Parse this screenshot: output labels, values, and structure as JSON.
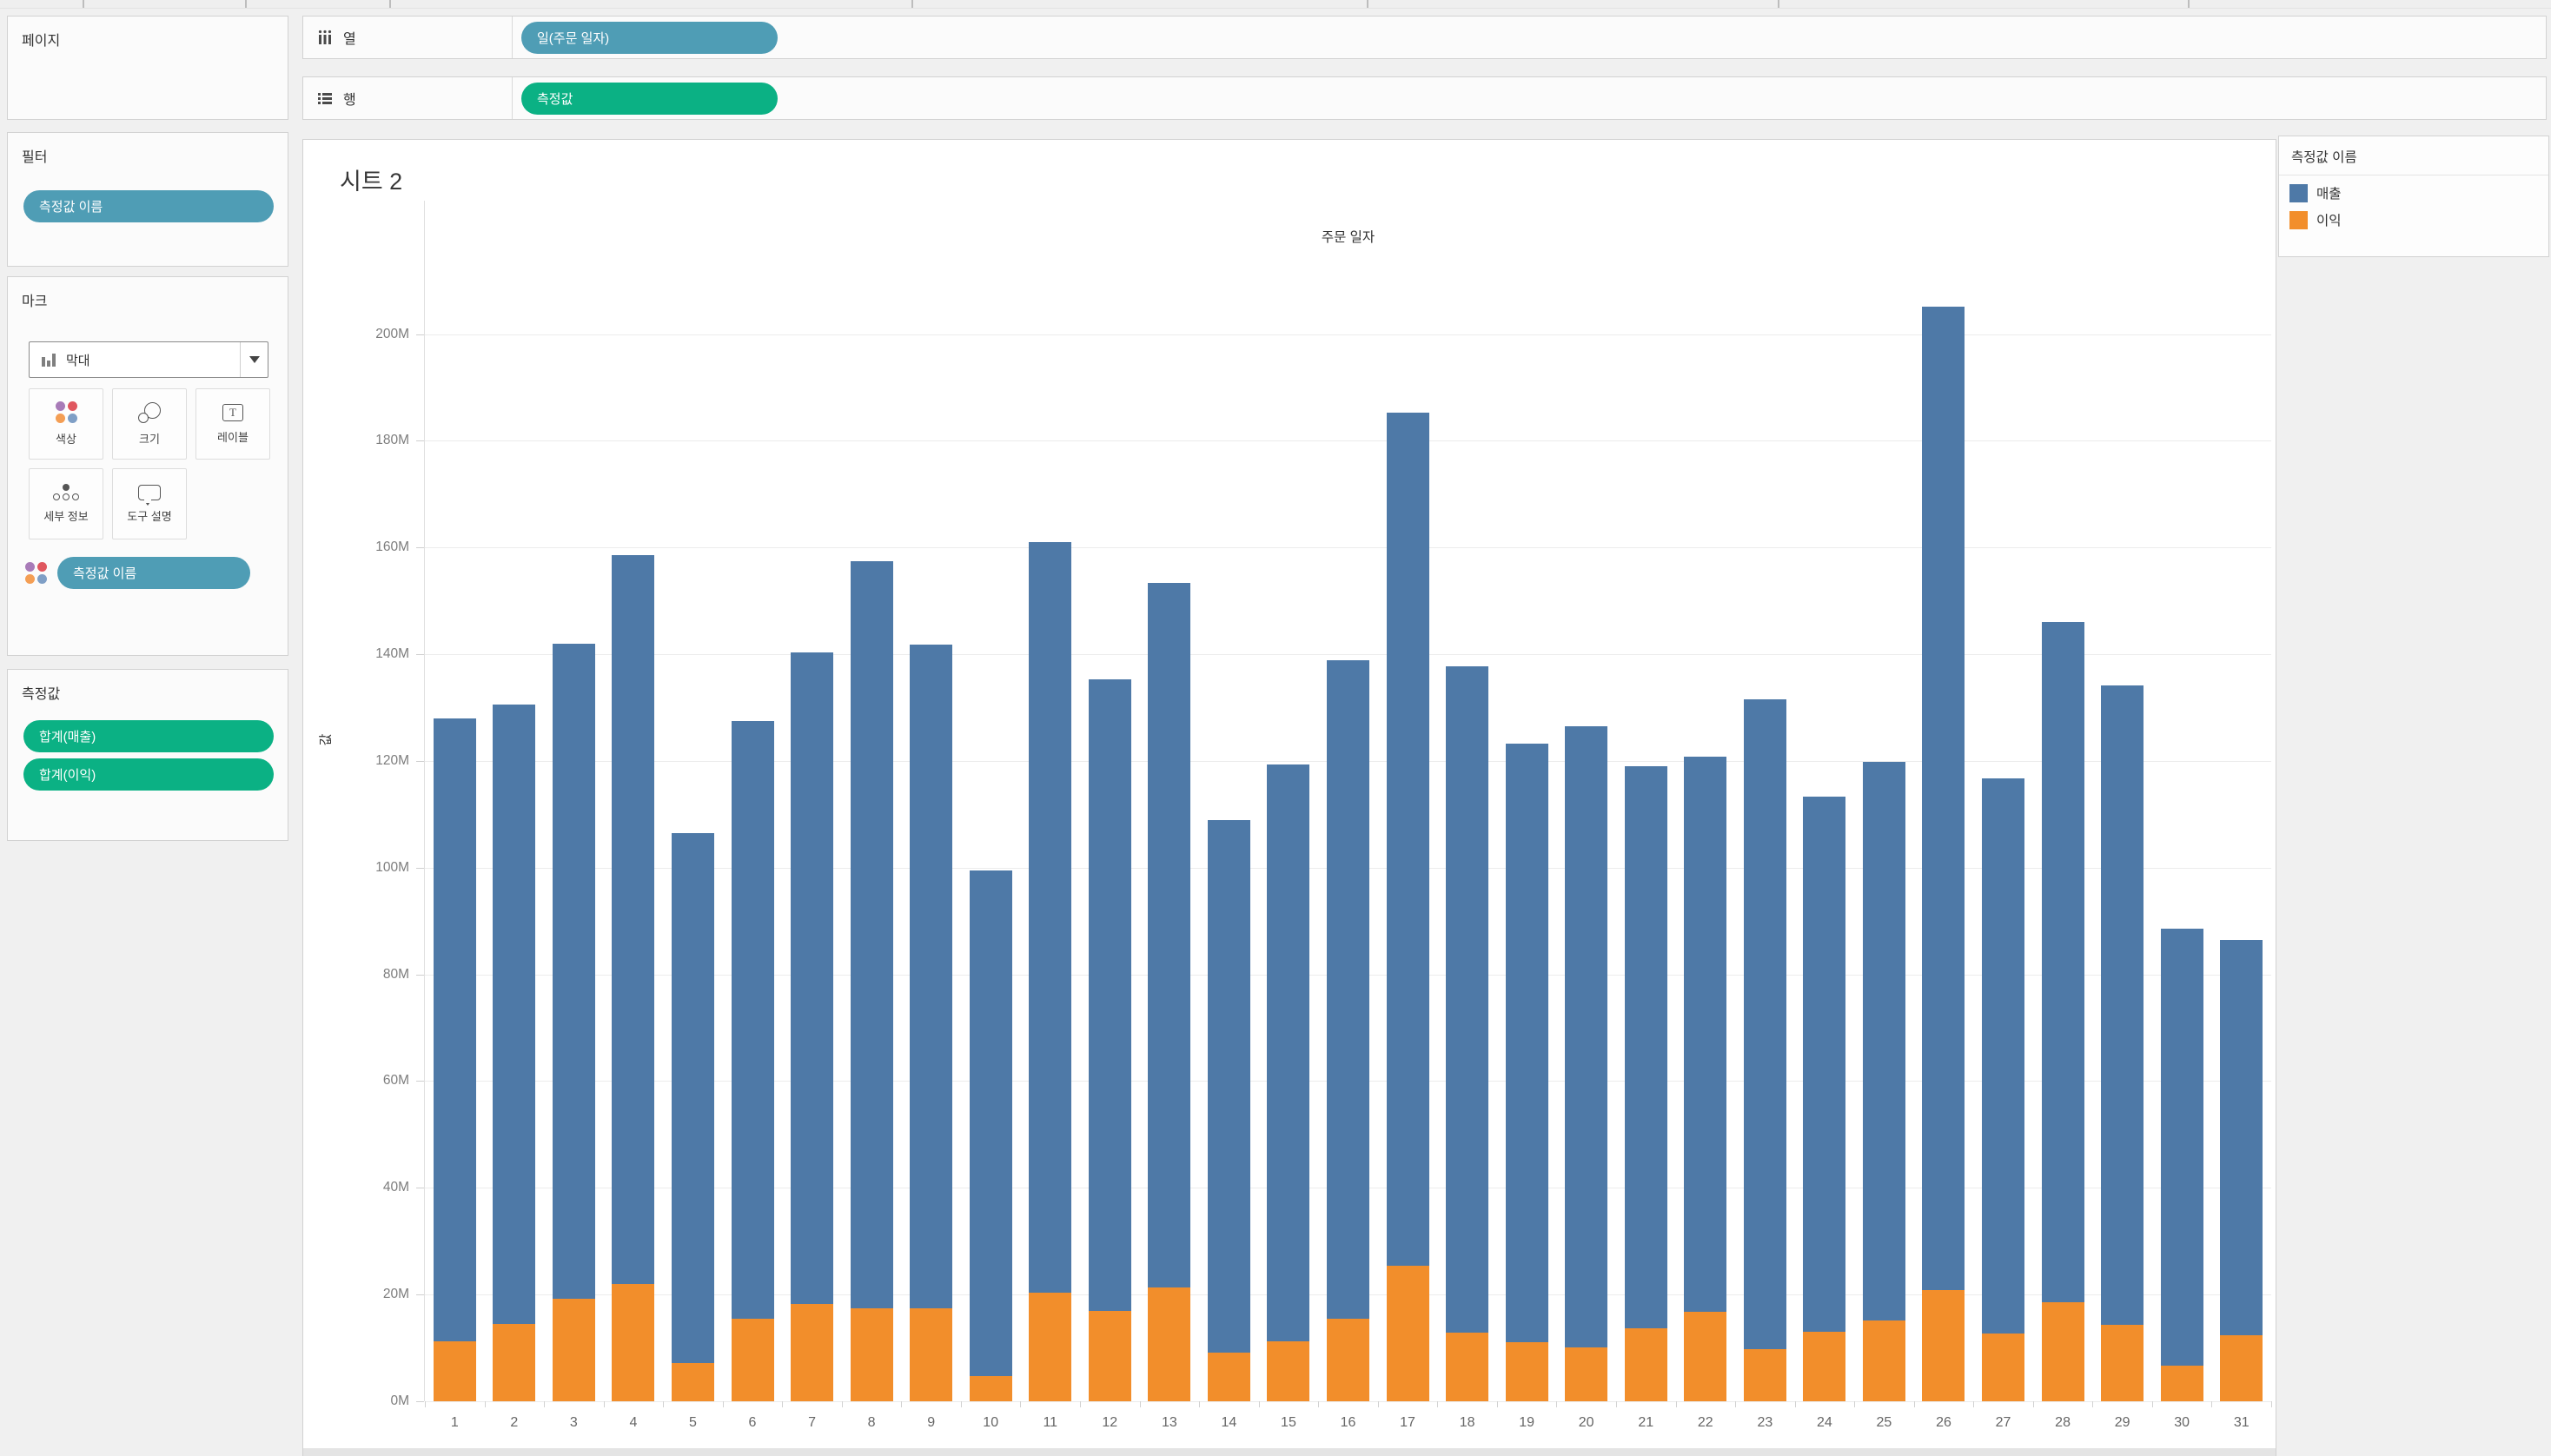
{
  "shelves": {
    "columns_label": "열",
    "rows_label": "행",
    "columns_pill": "일(주문 일자)",
    "rows_pill": "측정값"
  },
  "panels": {
    "pages": {
      "title": "페이지"
    },
    "filters": {
      "title": "필터",
      "pill": "측정값 이름"
    },
    "marks": {
      "title": "마크",
      "mark_type": "막대",
      "buttons": [
        {
          "label": "색상"
        },
        {
          "label": "크기"
        },
        {
          "label": "레이블"
        },
        {
          "label": "세부 정보"
        },
        {
          "label": "도구 설명"
        }
      ],
      "color_pill": "측정값 이름"
    },
    "measure_values": {
      "title": "측정값",
      "pills": [
        "합계(매출)",
        "합계(이익)"
      ]
    }
  },
  "sheet": {
    "title": "시트 2"
  },
  "legend": {
    "title": "측정값 이름",
    "items": [
      {
        "label": "매출",
        "color": "#4e79a7"
      },
      {
        "label": "이익",
        "color": "#f28e2b"
      }
    ]
  },
  "chart_data": {
    "type": "bar",
    "stacked": true,
    "title": "주문 일자",
    "xlabel": "주문 일자",
    "ylabel": "값",
    "unit": "M",
    "categories": [
      "1",
      "2",
      "3",
      "4",
      "5",
      "6",
      "7",
      "8",
      "9",
      "10",
      "11",
      "12",
      "13",
      "14",
      "15",
      "16",
      "17",
      "18",
      "19",
      "20",
      "21",
      "22",
      "23",
      "24",
      "25",
      "26",
      "27",
      "28",
      "29",
      "30",
      "31"
    ],
    "series": [
      {
        "name": "매출",
        "color": "#4e79a7",
        "values": [
          116.8,
          116.0,
          122.8,
          136.5,
          99.4,
          112.0,
          122.1,
          140.1,
          124.3,
          94.7,
          140.6,
          118.4,
          131.9,
          99.9,
          108.0,
          123.3,
          159.9,
          124.9,
          112.3,
          116.4,
          105.4,
          104.1,
          121.8,
          100.3,
          104.7,
          184.4,
          104.1,
          127.4,
          119.8,
          81.9,
          74.1
        ]
      },
      {
        "name": "이익",
        "color": "#f28e2b",
        "values": [
          11.2,
          14.5,
          19.2,
          22.0,
          7.1,
          15.5,
          18.2,
          17.4,
          17.5,
          4.8,
          20.4,
          16.9,
          21.4,
          9.1,
          11.3,
          15.5,
          25.4,
          12.9,
          11.0,
          10.1,
          13.6,
          16.7,
          9.7,
          13.0,
          15.1,
          20.8,
          12.7,
          18.6,
          14.3,
          6.6,
          12.4
        ]
      }
    ],
    "stack_order_bottom_to_top": [
      "이익",
      "매출"
    ],
    "y_tick_values": [
      0,
      20,
      40,
      60,
      80,
      100,
      120,
      140,
      160,
      180,
      200
    ],
    "y_tick_labels": [
      "0M",
      "20M",
      "40M",
      "60M",
      "80M",
      "100M",
      "120M",
      "140M",
      "160M",
      "180M",
      "200M"
    ],
    "ylim": [
      0,
      225
    ],
    "grid": true,
    "legend_position": "right"
  },
  "colors": {
    "bar_sales": "#4e79a7",
    "bar_profit": "#f28e2b",
    "pill_dimension": "#4f9db5",
    "pill_measure": "#0bb184",
    "color_button_dots": [
      "#a87bb8",
      "#e0575f",
      "#f49e54",
      "#7f9fc6"
    ]
  }
}
